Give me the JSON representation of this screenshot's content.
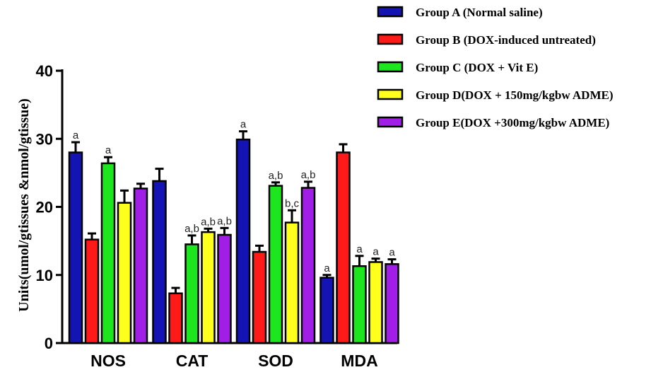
{
  "chart_data": {
    "type": "bar",
    "title": "",
    "xlabel": "",
    "ylabel": "Units(umol/gtissues &nmol/gtissue)",
    "ylim": [
      0,
      40
    ],
    "yticks": [
      "0",
      "10",
      "20",
      "30",
      "40"
    ],
    "categories": [
      "NOS",
      "CAT",
      "SOD",
      "MDA"
    ],
    "series": [
      {
        "name": "Group A (Normal saline)",
        "color": "#1414b4",
        "values": [
          28.0,
          23.8,
          29.9,
          9.6
        ],
        "errors": [
          1.5,
          1.8,
          1.2,
          0.4
        ],
        "annotations": [
          "a",
          "",
          "a",
          "a"
        ]
      },
      {
        "name": "Group B (DOX-induced untreated)",
        "color": "#ff1a1a",
        "values": [
          15.2,
          7.3,
          13.4,
          28.0
        ],
        "errors": [
          0.9,
          0.8,
          0.9,
          1.2
        ],
        "annotations": [
          "",
          "",
          "",
          ""
        ]
      },
      {
        "name": "Group C (DOX + Vit E)",
        "color": "#1ee61e",
        "values": [
          26.4,
          14.5,
          23.1,
          11.3
        ],
        "errors": [
          0.9,
          1.3,
          0.5,
          1.5
        ],
        "annotations": [
          "a",
          "a,b",
          "a,b",
          "a"
        ]
      },
      {
        "name": "Group D(DOX + 150mg/kgbw ADME)",
        "color": "#ffff1e",
        "values": [
          20.6,
          16.3,
          17.7,
          11.9
        ],
        "errors": [
          1.8,
          0.5,
          1.8,
          0.5
        ],
        "annotations": [
          "",
          "a,b",
          "b,c",
          "a"
        ]
      },
      {
        "name": "Group E(DOX +300mg/kgbw ADME)",
        "color": "#a01ee6",
        "values": [
          22.7,
          15.9,
          22.8,
          11.6
        ],
        "errors": [
          0.7,
          1.0,
          0.9,
          0.7
        ],
        "annotations": [
          "",
          "a,b",
          "a,b",
          "a"
        ]
      }
    ],
    "legend_position": "top-right",
    "grid": false
  }
}
